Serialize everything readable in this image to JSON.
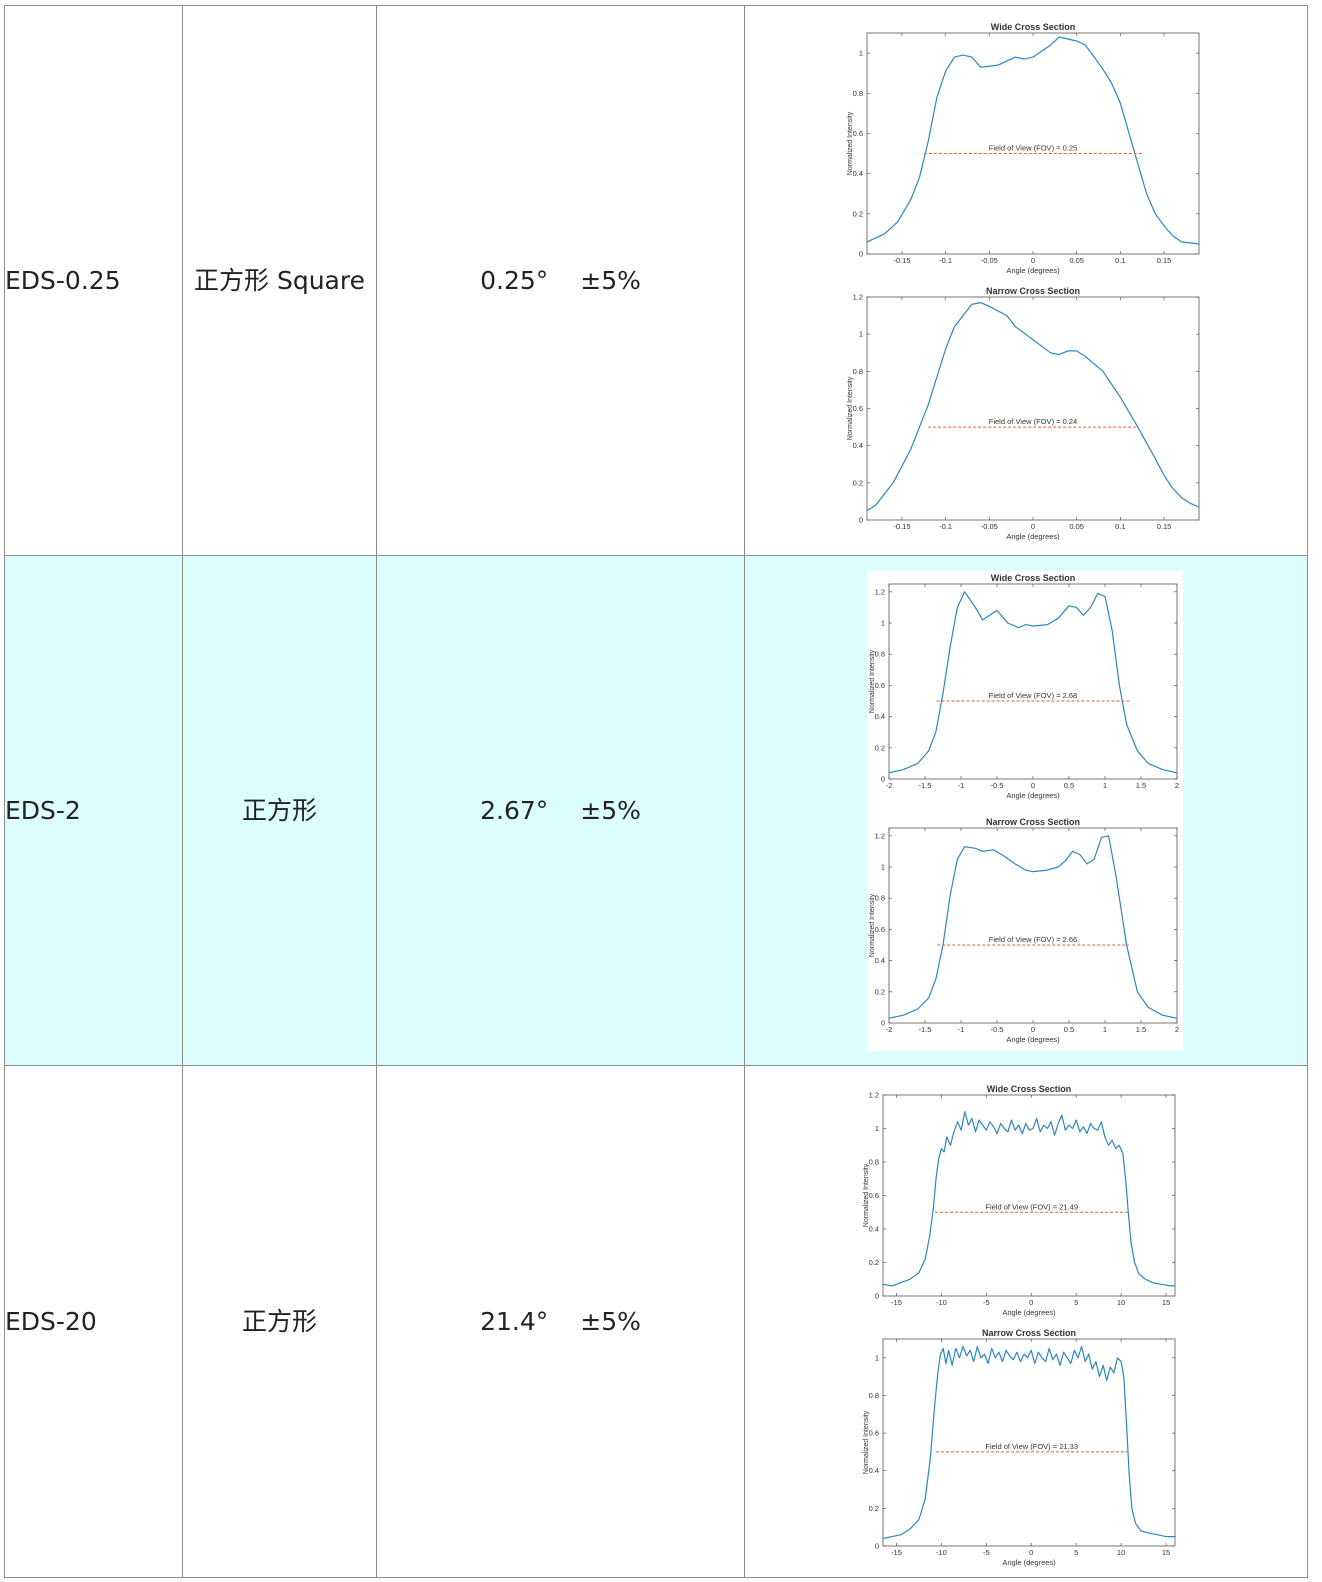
{
  "rows": [
    {
      "model": "EDS-0.25",
      "shape": "正方形 Square",
      "angle": "0.25°",
      "tolerance": "±5%",
      "highlight": false
    },
    {
      "model": "EDS-2",
      "shape": "正方形",
      "angle": "2.67°",
      "tolerance": "±5%",
      "highlight": true
    },
    {
      "model": "EDS-20",
      "shape": "正方形",
      "angle": "21.4°",
      "tolerance": "±5%",
      "highlight": false
    }
  ],
  "chart_data": [
    {
      "type": "line",
      "title": "Wide Cross Section",
      "xlabel": "Angle (degrees)",
      "ylabel": "Normalized Intensity",
      "xlim": [
        -0.19,
        0.19
      ],
      "ylim": [
        0,
        1.1
      ],
      "xticks": [
        -0.15,
        -0.1,
        -0.05,
        0,
        0.05,
        0.1,
        0.15
      ],
      "xtick_labels": [
        "-0.15",
        "-0.1",
        "-0.05",
        "0",
        "0.05",
        "0.1",
        "0.15"
      ],
      "yticks": [
        0,
        0.2,
        0.4,
        0.6,
        0.8,
        1
      ],
      "ytick_labels": [
        "0",
        "0.2",
        "0.4",
        "0.6",
        "0.8",
        "1"
      ],
      "annotation": "Field of View (FOV) = 0.25",
      "fov_level": 0.5,
      "fov_range": [
        -0.125,
        0.125
      ],
      "series": [
        {
          "x": [
            -0.19,
            -0.17,
            -0.155,
            -0.14,
            -0.13,
            -0.12,
            -0.11,
            -0.1,
            -0.09,
            -0.08,
            -0.07,
            -0.06,
            -0.04,
            -0.02,
            -0.01,
            0.0,
            0.02,
            0.03,
            0.04,
            0.05,
            0.06,
            0.07,
            0.08,
            0.09,
            0.1,
            0.11,
            0.12,
            0.13,
            0.14,
            0.15,
            0.16,
            0.17,
            0.19
          ],
          "y": [
            0.06,
            0.1,
            0.16,
            0.27,
            0.38,
            0.56,
            0.78,
            0.91,
            0.98,
            0.99,
            0.98,
            0.93,
            0.94,
            0.98,
            0.97,
            0.98,
            1.04,
            1.08,
            1.07,
            1.06,
            1.04,
            0.98,
            0.92,
            0.85,
            0.75,
            0.6,
            0.45,
            0.3,
            0.2,
            0.14,
            0.09,
            0.06,
            0.05
          ]
        }
      ]
    },
    {
      "type": "line",
      "title": "Narrow Cross Section",
      "xlabel": "Angle (degrees)",
      "ylabel": "Normalized Intensity",
      "xlim": [
        -0.19,
        0.19
      ],
      "ylim": [
        0,
        1.2
      ],
      "xticks": [
        -0.15,
        -0.1,
        -0.05,
        0,
        0.05,
        0.1,
        0.15
      ],
      "xtick_labels": [
        "-0.15",
        "-0.1",
        "-0.05",
        "0",
        "0.05",
        "0.1",
        "0.15"
      ],
      "yticks": [
        0,
        0.2,
        0.4,
        0.6,
        0.8,
        1,
        1.2
      ],
      "ytick_labels": [
        "0",
        "0.2",
        "0.4",
        "0.6",
        "0.8",
        "1",
        "1.2"
      ],
      "annotation": "Field of View (FOV) = 0.24",
      "fov_level": 0.5,
      "fov_range": [
        -0.12,
        0.12
      ],
      "series": [
        {
          "x": [
            -0.19,
            -0.18,
            -0.16,
            -0.14,
            -0.12,
            -0.1,
            -0.09,
            -0.07,
            -0.06,
            -0.05,
            -0.03,
            -0.02,
            0.0,
            0.02,
            0.03,
            0.04,
            0.05,
            0.06,
            0.08,
            0.1,
            0.12,
            0.14,
            0.15,
            0.16,
            0.17,
            0.18,
            0.19
          ],
          "y": [
            0.05,
            0.08,
            0.2,
            0.38,
            0.62,
            0.92,
            1.04,
            1.16,
            1.17,
            1.15,
            1.1,
            1.04,
            0.97,
            0.9,
            0.89,
            0.91,
            0.91,
            0.88,
            0.8,
            0.66,
            0.5,
            0.33,
            0.24,
            0.17,
            0.12,
            0.09,
            0.07
          ]
        }
      ]
    },
    {
      "type": "line",
      "title": "Wide Cross Section",
      "xlabel": "Angle (degrees)",
      "ylabel": "Normalized Intensity",
      "xlim": [
        -2,
        2
      ],
      "ylim": [
        0,
        1.25
      ],
      "xticks": [
        -2,
        -1.5,
        -1,
        -0.5,
        0,
        0.5,
        1,
        1.5,
        2
      ],
      "xtick_labels": [
        "-2",
        "-1.5",
        "-1",
        "-0.5",
        "0",
        "0.5",
        "1",
        "1.5",
        "2"
      ],
      "yticks": [
        0,
        0.2,
        0.4,
        0.6,
        0.8,
        1,
        1.2
      ],
      "ytick_labels": [
        "0",
        "0.2",
        "0.4",
        "0.6",
        "0.8",
        "1",
        "1.2"
      ],
      "annotation": "Field of View (FOV) = 2.68",
      "fov_level": 0.5,
      "fov_range": [
        -1.34,
        1.34
      ],
      "series": [
        {
          "x": [
            -2.0,
            -1.8,
            -1.6,
            -1.45,
            -1.35,
            -1.25,
            -1.15,
            -1.05,
            -0.95,
            -0.8,
            -0.7,
            -0.5,
            -0.35,
            -0.2,
            -0.1,
            0.0,
            0.2,
            0.35,
            0.5,
            0.6,
            0.7,
            0.8,
            0.9,
            1.0,
            1.1,
            1.2,
            1.3,
            1.45,
            1.6,
            1.8,
            2.0
          ],
          "y": [
            0.04,
            0.06,
            0.1,
            0.18,
            0.3,
            0.55,
            0.85,
            1.1,
            1.2,
            1.1,
            1.02,
            1.08,
            1.0,
            0.97,
            0.99,
            0.98,
            0.99,
            1.03,
            1.11,
            1.1,
            1.05,
            1.1,
            1.19,
            1.17,
            0.95,
            0.6,
            0.35,
            0.18,
            0.1,
            0.06,
            0.04
          ]
        }
      ]
    },
    {
      "type": "line",
      "title": "Narrow Cross Section",
      "xlabel": "Angle (degrees)",
      "ylabel": "Normalized Intensity",
      "xlim": [
        -2,
        2
      ],
      "ylim": [
        0,
        1.25
      ],
      "xticks": [
        -2,
        -1.5,
        -1,
        -0.5,
        0,
        0.5,
        1,
        1.5,
        2
      ],
      "xtick_labels": [
        "-2",
        "-1.5",
        "-1",
        "-0.5",
        "0",
        "0.5",
        "1",
        "1.5",
        "2"
      ],
      "yticks": [
        0,
        0.2,
        0.4,
        0.6,
        0.8,
        1,
        1.2
      ],
      "ytick_labels": [
        "0",
        "0.2",
        "0.4",
        "0.6",
        "0.8",
        "1",
        "1.2"
      ],
      "annotation": "Field of View (FOV) = 2.66",
      "fov_level": 0.5,
      "fov_range": [
        -1.33,
        1.33
      ],
      "series": [
        {
          "x": [
            -2.0,
            -1.8,
            -1.6,
            -1.45,
            -1.35,
            -1.25,
            -1.15,
            -1.05,
            -0.95,
            -0.8,
            -0.7,
            -0.55,
            -0.4,
            -0.25,
            -0.1,
            0.0,
            0.2,
            0.35,
            0.45,
            0.55,
            0.65,
            0.75,
            0.85,
            0.95,
            1.05,
            1.15,
            1.3,
            1.45,
            1.6,
            1.8,
            2.0
          ],
          "y": [
            0.03,
            0.05,
            0.09,
            0.16,
            0.28,
            0.5,
            0.82,
            1.05,
            1.13,
            1.12,
            1.1,
            1.11,
            1.07,
            1.02,
            0.98,
            0.97,
            0.98,
            1.0,
            1.04,
            1.1,
            1.08,
            1.02,
            1.05,
            1.19,
            1.2,
            0.95,
            0.5,
            0.2,
            0.1,
            0.05,
            0.03
          ]
        }
      ]
    },
    {
      "type": "line",
      "title": "Wide Cross Section",
      "xlabel": "Angle (degrees)",
      "ylabel": "Normalized Intensity",
      "xlim": [
        -16.5,
        16
      ],
      "ylim": [
        0,
        1.2
      ],
      "xticks": [
        -15,
        -10,
        -5,
        0,
        5,
        10,
        15
      ],
      "xtick_labels": [
        "-15",
        "-10",
        "-5",
        "0",
        "5",
        "10",
        "15"
      ],
      "yticks": [
        0,
        0.2,
        0.4,
        0.6,
        0.8,
        1,
        1.2
      ],
      "ytick_labels": [
        "0",
        "0.2",
        "0.4",
        "0.6",
        "0.8",
        "1",
        "1.2"
      ],
      "annotation": "Field of View (FOV) = 21.49",
      "fov_level": 0.5,
      "fov_range": [
        -10.7,
        10.8
      ],
      "series": [
        {
          "x": [
            -16.5,
            -15.5,
            -14.5,
            -13.5,
            -12.5,
            -11.8,
            -11.3,
            -10.9,
            -10.6,
            -10.3,
            -10.0,
            -9.7,
            -9.4,
            -9.0,
            -8.6,
            -8.2,
            -7.8,
            -7.4,
            -7.0,
            -6.6,
            -6.2,
            -5.8,
            -5.4,
            -5.0,
            -4.6,
            -4.2,
            -3.8,
            -3.4,
            -3.0,
            -2.6,
            -2.2,
            -1.8,
            -1.4,
            -1.0,
            -0.6,
            -0.2,
            0.2,
            0.6,
            1.0,
            1.4,
            1.8,
            2.2,
            2.6,
            3.0,
            3.4,
            3.8,
            4.2,
            4.6,
            5.0,
            5.4,
            5.8,
            6.2,
            6.6,
            7.0,
            7.4,
            7.8,
            8.2,
            8.6,
            9.0,
            9.4,
            9.8,
            10.2,
            10.5,
            10.8,
            11.1,
            11.5,
            12.0,
            12.7,
            13.5,
            14.5,
            15.5,
            16.0
          ],
          "y": [
            0.07,
            0.06,
            0.08,
            0.1,
            0.14,
            0.22,
            0.36,
            0.52,
            0.7,
            0.82,
            0.88,
            0.86,
            0.95,
            0.9,
            0.98,
            1.04,
            0.99,
            1.1,
            1.02,
            1.06,
            0.98,
            1.05,
            1.02,
            0.99,
            1.04,
            1.01,
            0.97,
            1.03,
            1.0,
            0.98,
            1.05,
            0.99,
            1.02,
            0.97,
            1.03,
            0.99,
            1.0,
            1.06,
            0.98,
            1.02,
            1.0,
            1.04,
            0.96,
            1.03,
            1.08,
            0.99,
            1.02,
            1.0,
            1.05,
            0.98,
            1.01,
            0.97,
            1.03,
            1.0,
            0.99,
            1.04,
            0.95,
            0.9,
            0.93,
            0.88,
            0.9,
            0.85,
            0.7,
            0.5,
            0.32,
            0.2,
            0.13,
            0.1,
            0.08,
            0.07,
            0.06,
            0.06
          ]
        }
      ]
    },
    {
      "type": "line",
      "title": "Narrow Cross Section",
      "xlabel": "Angle (degrees)",
      "ylabel": "Normalized Intensity",
      "xlim": [
        -16.5,
        16
      ],
      "ylim": [
        0,
        1.1
      ],
      "xticks": [
        -15,
        -10,
        -5,
        0,
        5,
        10,
        15
      ],
      "xtick_labels": [
        "-15",
        "-10",
        "-5",
        "0",
        "5",
        "10",
        "15"
      ],
      "yticks": [
        0,
        0.2,
        0.4,
        0.6,
        0.8,
        1
      ],
      "ytick_labels": [
        "0",
        "0.2",
        "0.4",
        "0.6",
        "0.8",
        "1"
      ],
      "annotation": "Field of View (FOV) = 21.33",
      "fov_level": 0.5,
      "fov_range": [
        -10.6,
        10.7
      ],
      "series": [
        {
          "x": [
            -16.5,
            -15.5,
            -14.5,
            -13.5,
            -12.5,
            -11.8,
            -11.2,
            -10.8,
            -10.4,
            -10.1,
            -9.8,
            -9.5,
            -9.2,
            -8.8,
            -8.4,
            -8.0,
            -7.6,
            -7.2,
            -6.8,
            -6.4,
            -6.0,
            -5.6,
            -5.2,
            -4.8,
            -4.4,
            -4.0,
            -3.6,
            -3.2,
            -2.8,
            -2.4,
            -2.0,
            -1.6,
            -1.2,
            -0.8,
            -0.4,
            0.0,
            0.4,
            0.8,
            1.2,
            1.6,
            2.0,
            2.4,
            2.8,
            3.2,
            3.6,
            4.0,
            4.4,
            4.8,
            5.2,
            5.6,
            6.0,
            6.4,
            6.8,
            7.2,
            7.6,
            8.0,
            8.4,
            8.8,
            9.2,
            9.6,
            10.0,
            10.3,
            10.6,
            10.9,
            11.2,
            11.6,
            12.2,
            13.0,
            14.0,
            15.0,
            16.0
          ],
          "y": [
            0.04,
            0.05,
            0.06,
            0.09,
            0.14,
            0.25,
            0.48,
            0.72,
            0.92,
            1.02,
            1.05,
            0.97,
            1.04,
            0.96,
            1.05,
            1.0,
            1.06,
            1.01,
            1.04,
            0.98,
            1.06,
            1.0,
            1.02,
            0.97,
            1.05,
            1.0,
            1.03,
            0.98,
            1.04,
            1.01,
            0.99,
            1.03,
            0.98,
            1.02,
            1.0,
            1.04,
            0.97,
            1.03,
            1.0,
            0.98,
            1.05,
            0.99,
            1.02,
            0.96,
            1.03,
            1.0,
            0.97,
            1.04,
            1.0,
            1.06,
            0.98,
            1.02,
            0.94,
            0.98,
            0.9,
            0.96,
            0.88,
            0.95,
            0.92,
            1.0,
            0.98,
            0.9,
            0.65,
            0.38,
            0.2,
            0.12,
            0.08,
            0.07,
            0.06,
            0.05,
            0.05
          ]
        }
      ]
    }
  ]
}
